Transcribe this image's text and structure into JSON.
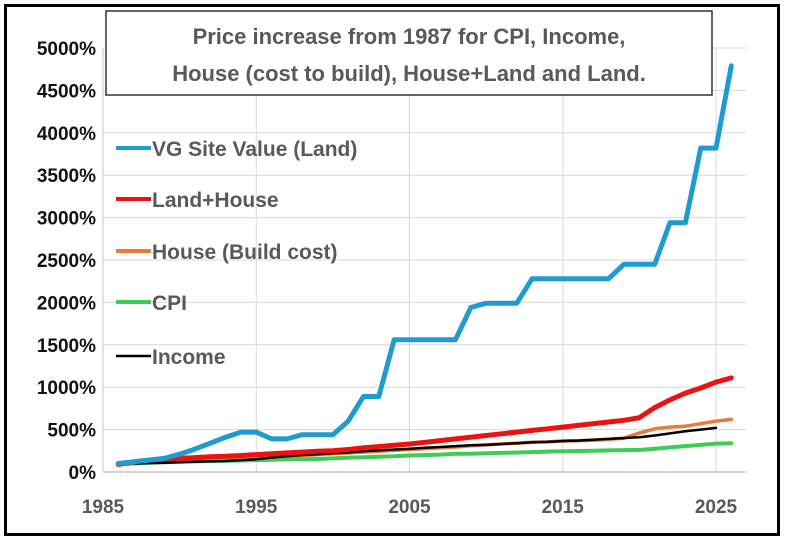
{
  "chart_data": {
    "type": "line",
    "title": [
      "Price increase from 1987 for CPI, Income,",
      "House (cost to build), House+Land and Land."
    ],
    "xlabel": "",
    "ylabel": "",
    "xlim": [
      1985,
      2027
    ],
    "ylim": [
      0,
      5000
    ],
    "x_ticks": [
      1985,
      1995,
      2005,
      2015,
      2025
    ],
    "x_tick_labels": [
      "1985",
      "1995",
      "2005",
      "2015",
      "2025"
    ],
    "y_ticks": [
      0,
      500,
      1000,
      1500,
      2000,
      2500,
      3000,
      3500,
      4000,
      4500,
      5000
    ],
    "y_tick_labels": [
      "0%",
      "500%",
      "1000%",
      "1500%",
      "2000%",
      "2500%",
      "3000%",
      "3500%",
      "4000%",
      "4500%",
      "5000%"
    ],
    "grid": true,
    "legend_position": "top-left",
    "series": [
      {
        "name": "VG Site Value (Land)",
        "color": "#1f9bd1",
        "x": [
          1986,
          1987,
          1988,
          1989,
          1990,
          1991,
          1992,
          1993,
          1994,
          1995,
          1996,
          1997,
          1998,
          1999,
          2000,
          2001,
          2002,
          2003,
          2004,
          2005,
          2006,
          2007,
          2008,
          2009,
          2010,
          2011,
          2012,
          2013,
          2014,
          2015,
          2016,
          2017,
          2018,
          2019,
          2020,
          2021,
          2022,
          2023,
          2024,
          2025,
          2026
        ],
        "values": [
          100,
          120,
          140,
          160,
          210,
          270,
          340,
          410,
          470,
          470,
          390,
          390,
          440,
          440,
          440,
          600,
          890,
          890,
          1560,
          1560,
          1560,
          1560,
          1560,
          1940,
          1990,
          1990,
          1990,
          2280,
          2280,
          2280,
          2280,
          2280,
          2280,
          2450,
          2450,
          2450,
          2940,
          2940,
          3820,
          3820,
          4790
        ]
      },
      {
        "name": "Land+House",
        "color": "#ee1111",
        "x": [
          1986,
          1987,
          1988,
          1989,
          1990,
          1991,
          1992,
          1993,
          1994,
          1995,
          1996,
          1997,
          1998,
          1999,
          2000,
          2001,
          2002,
          2003,
          2004,
          2005,
          2006,
          2007,
          2008,
          2009,
          2010,
          2011,
          2012,
          2013,
          2014,
          2015,
          2016,
          2017,
          2018,
          2019,
          2020,
          2021,
          2022,
          2023,
          2024,
          2025,
          2026
        ],
        "values": [
          90,
          120,
          140,
          150,
          160,
          170,
          180,
          185,
          195,
          205,
          215,
          225,
          235,
          245,
          250,
          265,
          285,
          300,
          315,
          330,
          350,
          370,
          390,
          410,
          430,
          450,
          470,
          490,
          510,
          530,
          550,
          570,
          590,
          610,
          640,
          760,
          850,
          930,
          990,
          1060,
          1110
        ]
      },
      {
        "name": "House (Build cost)",
        "color": "#e87a3a",
        "x": [
          1986,
          1987,
          1988,
          1989,
          1990,
          1991,
          1992,
          1993,
          1994,
          1995,
          1996,
          1997,
          1998,
          1999,
          2000,
          2001,
          2002,
          2003,
          2004,
          2005,
          2006,
          2007,
          2008,
          2009,
          2010,
          2011,
          2012,
          2013,
          2014,
          2015,
          2016,
          2017,
          2018,
          2019,
          2020,
          2021,
          2022,
          2023,
          2024,
          2025,
          2026
        ],
        "values": [
          90,
          110,
          125,
          135,
          140,
          145,
          150,
          155,
          160,
          165,
          175,
          185,
          195,
          205,
          215,
          225,
          235,
          245,
          255,
          265,
          275,
          285,
          295,
          310,
          320,
          330,
          340,
          350,
          355,
          365,
          370,
          375,
          385,
          400,
          460,
          510,
          530,
          540,
          570,
          600,
          620
        ]
      },
      {
        "name": "CPI",
        "color": "#3fcc55",
        "x": [
          1986,
          1987,
          1988,
          1989,
          1990,
          1991,
          1992,
          1993,
          1994,
          1995,
          1996,
          1997,
          1998,
          1999,
          2000,
          2001,
          2002,
          2003,
          2004,
          2005,
          2006,
          2007,
          2008,
          2009,
          2010,
          2011,
          2012,
          2013,
          2014,
          2015,
          2016,
          2017,
          2018,
          2019,
          2020,
          2021,
          2022,
          2023,
          2024,
          2025,
          2026
        ],
        "values": [
          90,
          100,
          110,
          115,
          120,
          125,
          130,
          133,
          136,
          140,
          145,
          148,
          150,
          153,
          160,
          170,
          175,
          180,
          185,
          195,
          200,
          205,
          215,
          215,
          220,
          225,
          230,
          235,
          240,
          245,
          248,
          250,
          255,
          258,
          260,
          275,
          290,
          305,
          320,
          335,
          340
        ]
      },
      {
        "name": "Income",
        "color": "#000000",
        "x": [
          1987,
          1988,
          1989,
          1990,
          1991,
          1992,
          1993,
          1994,
          1995,
          1996,
          1997,
          1998,
          1999,
          2000,
          2001,
          2002,
          2003,
          2004,
          2005,
          2006,
          2007,
          2008,
          2009,
          2010,
          2011,
          2012,
          2013,
          2014,
          2015,
          2016,
          2017,
          2018,
          2019,
          2020,
          2021,
          2022,
          2023,
          2024,
          2025
        ],
        "values": [
          100,
          105,
          110,
          115,
          120,
          125,
          130,
          140,
          150,
          170,
          185,
          200,
          210,
          220,
          230,
          245,
          255,
          265,
          275,
          285,
          295,
          305,
          315,
          320,
          330,
          340,
          350,
          355,
          365,
          370,
          380,
          390,
          400,
          410,
          430,
          455,
          480,
          500,
          520
        ]
      }
    ]
  }
}
